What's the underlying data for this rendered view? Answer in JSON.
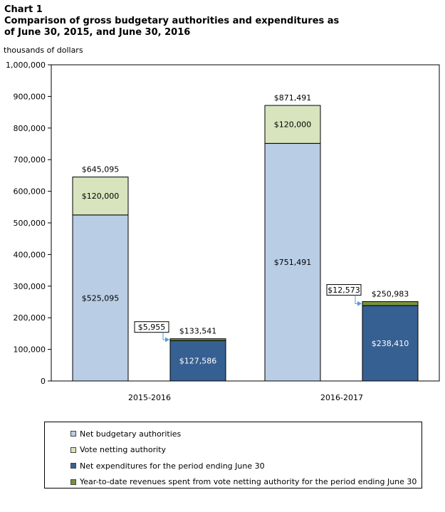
{
  "title_line1": "Chart 1",
  "title_line2": "Comparison of gross budgetary authorities and expenditures as",
  "title_line3": "of June 30, 2015, and June 30, 2016",
  "unit_label": "thousands of dollars",
  "colors": {
    "net_budgetary": "#b9cde5",
    "vote_netting": "#d7e4bd",
    "net_expenditures": "#376092",
    "ytd_revenues": "#77933c"
  },
  "chart_data": {
    "type": "bar",
    "stacked": true,
    "categories": [
      "2015-2016",
      "2016-2017"
    ],
    "ylim": [
      0,
      1000000
    ],
    "yticks": [
      "0",
      "100,000",
      "200,000",
      "300,000",
      "400,000",
      "500,000",
      "600,000",
      "700,000",
      "800,000",
      "900,000",
      "1,000,000"
    ],
    "ylabel": "thousands of dollars",
    "groups": [
      {
        "category": "2015-2016",
        "authorities_bar": {
          "net_budgetary": 525095,
          "net_budgetary_label": "$525,095",
          "vote_netting": 120000,
          "vote_netting_label": "$120,000",
          "total_label": "$645,095"
        },
        "expenditures_bar": {
          "net_expenditures": 127586,
          "net_expenditures_label": "$127,586",
          "ytd_revenues": 5955,
          "ytd_revenues_label": "$5,955",
          "total_label": "$133,541"
        }
      },
      {
        "category": "2016-2017",
        "authorities_bar": {
          "net_budgetary": 751491,
          "net_budgetary_label": "$751,491",
          "vote_netting": 120000,
          "vote_netting_label": "$120,000",
          "total_label": "$871,491"
        },
        "expenditures_bar": {
          "net_expenditures": 238410,
          "net_expenditures_label": "$238,410",
          "ytd_revenues": 12573,
          "ytd_revenues_label": "$12,573",
          "total_label": "$250,983"
        }
      }
    ],
    "legend": [
      {
        "key": "net_budgetary",
        "label": "Net budgetary authorities"
      },
      {
        "key": "vote_netting",
        "label": "Vote netting authority"
      },
      {
        "key": "net_expenditures",
        "label": "Net expenditures for the period ending June 30"
      },
      {
        "key": "ytd_revenues",
        "label": "Year-to-date revenues spent from vote netting authority for the period ending June 30"
      }
    ],
    "legend_position": "bottom",
    "grid": false
  }
}
